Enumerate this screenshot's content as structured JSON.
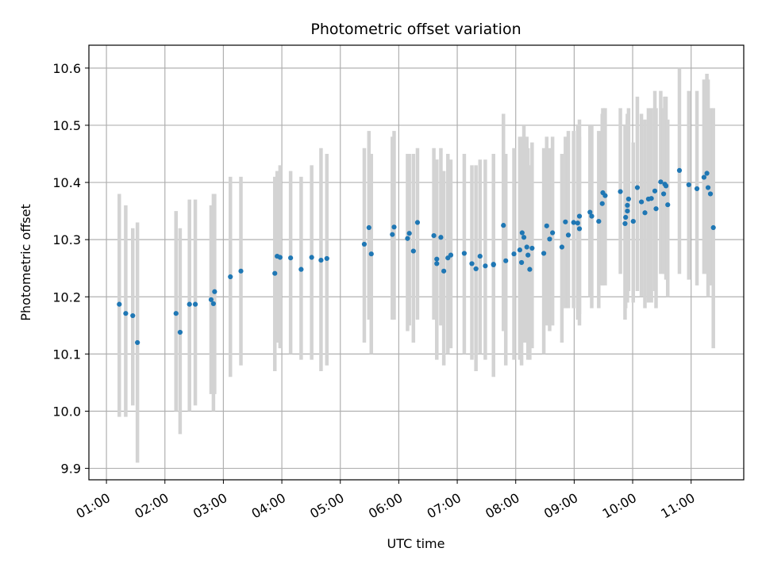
{
  "chart_data": {
    "type": "scatter",
    "title": "Photometric offset variation",
    "xlabel": "UTC time",
    "ylabel": "Photometric offset",
    "x_unit": "UTC time (hours)",
    "xlim_hours": [
      0.7,
      11.9
    ],
    "ylim": [
      9.88,
      10.64
    ],
    "x_ticks": [
      {
        "hour": 1,
        "label": "01:00"
      },
      {
        "hour": 2,
        "label": "02:00"
      },
      {
        "hour": 3,
        "label": "03:00"
      },
      {
        "hour": 4,
        "label": "04:00"
      },
      {
        "hour": 5,
        "label": "05:00"
      },
      {
        "hour": 6,
        "label": "06:00"
      },
      {
        "hour": 7,
        "label": "07:00"
      },
      {
        "hour": 8,
        "label": "08:00"
      },
      {
        "hour": 9,
        "label": "09:00"
      },
      {
        "hour": 10,
        "label": "10:00"
      },
      {
        "hour": 11,
        "label": "11:00"
      }
    ],
    "y_ticks": [
      {
        "value": 9.9,
        "label": "9.9"
      },
      {
        "value": 10.0,
        "label": "10.0"
      },
      {
        "value": 10.1,
        "label": "10.1"
      },
      {
        "value": 10.2,
        "label": "10.2"
      },
      {
        "value": 10.3,
        "label": "10.3"
      },
      {
        "value": 10.4,
        "label": "10.4"
      },
      {
        "value": 10.5,
        "label": "10.5"
      },
      {
        "value": 10.6,
        "label": "10.6"
      }
    ],
    "grid": true,
    "colors": {
      "points": "#1f77b4",
      "errorbars": "#d3d3d3",
      "grid": "#b0b0b0"
    },
    "series": [
      {
        "marker": "point",
        "x": [
          1.22,
          1.33,
          1.45,
          1.53,
          2.19,
          2.26,
          2.42,
          2.52,
          2.79,
          2.83,
          2.85,
          3.12,
          3.3,
          3.88,
          3.92,
          3.97,
          4.15,
          4.33,
          4.51,
          4.67,
          4.77,
          5.41,
          5.49,
          5.53,
          5.89,
          5.92,
          6.15,
          6.18,
          6.25,
          6.32,
          6.6,
          6.65,
          6.65,
          6.72,
          6.77,
          6.84,
          6.89,
          7.12,
          7.25,
          7.32,
          7.39,
          7.48,
          7.62,
          7.62,
          7.79,
          7.83,
          7.97,
          8.07,
          8.1,
          8.11,
          8.14,
          8.19,
          8.21,
          8.24,
          8.28,
          8.48,
          8.53,
          8.58,
          8.63,
          8.79,
          8.85,
          8.9,
          8.99,
          9.06,
          9.09,
          9.09,
          9.27,
          9.3,
          9.42,
          9.48,
          9.49,
          9.53,
          9.79,
          9.87,
          9.88,
          9.91,
          9.91,
          9.93,
          10.01,
          10.08,
          10.15,
          10.21,
          10.27,
          10.32,
          10.38,
          10.4,
          10.48,
          10.53,
          10.55,
          10.57,
          10.6,
          10.8,
          10.96,
          11.1,
          11.22,
          11.27,
          11.29,
          11.33,
          11.38
        ],
        "y": [
          10.187,
          10.171,
          10.167,
          10.12,
          10.171,
          10.138,
          10.187,
          10.187,
          10.195,
          10.188,
          10.209,
          10.235,
          10.245,
          10.241,
          10.271,
          10.269,
          10.268,
          10.248,
          10.269,
          10.264,
          10.267,
          10.292,
          10.321,
          10.275,
          10.309,
          10.322,
          10.302,
          10.311,
          10.28,
          10.33,
          10.307,
          10.258,
          10.266,
          10.304,
          10.245,
          10.268,
          10.273,
          10.276,
          10.258,
          10.249,
          10.271,
          10.254,
          10.257,
          10.256,
          10.325,
          10.263,
          10.275,
          10.282,
          10.26,
          10.312,
          10.304,
          10.287,
          10.273,
          10.248,
          10.285,
          10.276,
          10.324,
          10.301,
          10.312,
          10.287,
          10.331,
          10.308,
          10.33,
          10.329,
          10.341,
          10.319,
          10.348,
          10.341,
          10.332,
          10.363,
          10.382,
          10.377,
          10.384,
          10.328,
          10.339,
          10.35,
          10.36,
          10.371,
          10.332,
          10.391,
          10.366,
          10.347,
          10.371,
          10.372,
          10.385,
          10.354,
          10.401,
          10.38,
          10.397,
          10.394,
          10.361,
          10.421,
          10.396,
          10.389,
          10.409,
          10.416,
          10.391,
          10.38,
          10.321
        ],
        "y_low": [
          9.99,
          9.99,
          10.01,
          9.91,
          10.0,
          9.96,
          10.0,
          10.01,
          10.03,
          10.0,
          10.03,
          10.06,
          10.08,
          10.07,
          10.12,
          10.11,
          10.1,
          10.09,
          10.09,
          10.07,
          10.08,
          10.12,
          10.16,
          10.1,
          10.16,
          10.16,
          10.14,
          10.15,
          10.12,
          10.16,
          10.16,
          10.09,
          10.1,
          10.15,
          10.08,
          10.1,
          10.11,
          10.1,
          10.09,
          10.07,
          10.1,
          10.09,
          10.07,
          10.06,
          10.14,
          10.08,
          10.09,
          10.09,
          10.08,
          10.14,
          10.12,
          10.12,
          10.09,
          10.09,
          10.11,
          10.1,
          10.15,
          10.14,
          10.15,
          10.12,
          10.18,
          10.18,
          10.18,
          10.16,
          10.17,
          10.15,
          10.2,
          10.18,
          10.18,
          10.22,
          10.22,
          10.22,
          10.24,
          10.16,
          10.18,
          10.19,
          10.2,
          10.21,
          10.19,
          10.21,
          10.2,
          10.18,
          10.19,
          10.19,
          10.21,
          10.18,
          10.24,
          10.24,
          10.24,
          10.23,
          10.2,
          10.24,
          10.23,
          10.22,
          10.24,
          10.24,
          10.2,
          10.22,
          10.11
        ],
        "y_high": [
          10.38,
          10.36,
          10.32,
          10.33,
          10.35,
          10.32,
          10.37,
          10.37,
          10.36,
          10.38,
          10.38,
          10.41,
          10.41,
          10.41,
          10.42,
          10.43,
          10.42,
          10.41,
          10.43,
          10.46,
          10.45,
          10.46,
          10.49,
          10.45,
          10.48,
          10.49,
          10.45,
          10.45,
          10.45,
          10.46,
          10.46,
          10.44,
          10.44,
          10.46,
          10.42,
          10.45,
          10.44,
          10.45,
          10.43,
          10.43,
          10.44,
          10.44,
          10.44,
          10.45,
          10.52,
          10.45,
          10.46,
          10.48,
          10.46,
          10.48,
          10.5,
          10.48,
          10.46,
          10.43,
          10.47,
          10.46,
          10.48,
          10.46,
          10.48,
          10.45,
          10.48,
          10.49,
          10.49,
          10.5,
          10.51,
          10.48,
          10.5,
          10.5,
          10.49,
          10.52,
          10.53,
          10.53,
          10.53,
          10.5,
          10.5,
          10.51,
          10.52,
          10.53,
          10.47,
          10.55,
          10.52,
          10.51,
          10.53,
          10.53,
          10.56,
          10.53,
          10.56,
          10.53,
          10.55,
          10.55,
          10.51,
          10.6,
          10.56,
          10.56,
          10.58,
          10.59,
          10.58,
          10.53,
          10.53
        ]
      }
    ]
  }
}
